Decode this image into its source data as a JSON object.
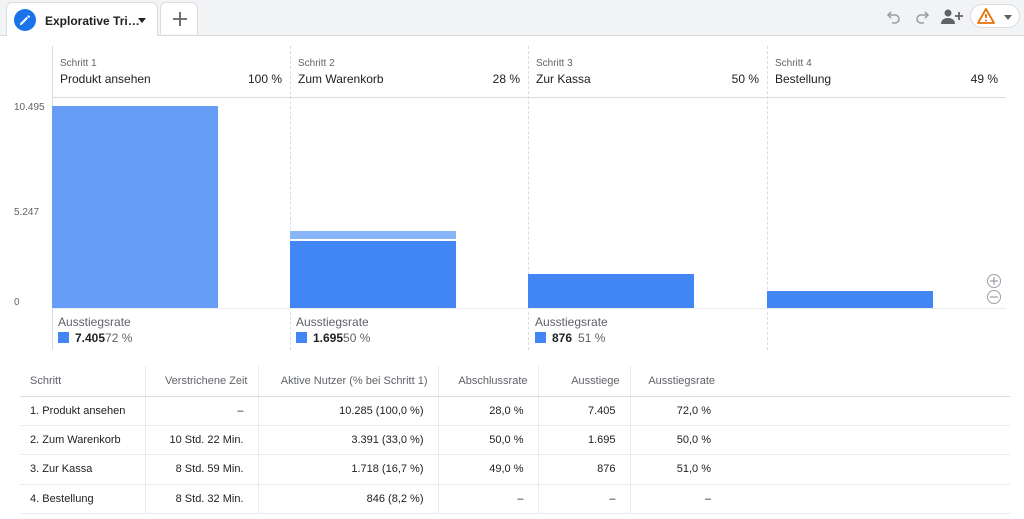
{
  "tab": {
    "title": "Explorative Tri…",
    "icon": "pencil-icon"
  },
  "toolbar": {
    "icons": [
      "undo-icon",
      "redo-icon",
      "share-user-icon",
      "warning-icon"
    ]
  },
  "colors": {
    "primary": "#4285f4",
    "first_bar": "#669df6",
    "dropoff": "#8ab4f8",
    "warning": "#e8710a"
  },
  "chart_data": {
    "type": "bar",
    "categories": [
      "Produkt ansehen",
      "Zum Warenkorb",
      "Zur Kassa",
      "Bestellung"
    ],
    "values": [
      10285,
      3391,
      1718,
      846
    ],
    "dropoff_values": [
      7405,
      1695,
      876,
      null
    ],
    "yticks": [
      "10.495",
      "5.247",
      "0"
    ],
    "ylim": [
      0,
      10495
    ]
  },
  "steps": [
    {
      "label": "Schritt 1",
      "name": "Produkt ansehen",
      "pct": "100 %",
      "exit_label": "Ausstiegsrate",
      "exit_value": "7.405",
      "exit_pct": "72 %"
    },
    {
      "label": "Schritt 2",
      "name": "Zum Warenkorb",
      "pct": "28 %",
      "exit_label": "Ausstiegsrate",
      "exit_value": "1.695",
      "exit_pct": "50 %"
    },
    {
      "label": "Schritt 3",
      "name": "Zur Kassa",
      "pct": "50 %",
      "exit_label": "Ausstiegsrate",
      "exit_value": "876",
      "exit_pct": "51 %"
    },
    {
      "label": "Schritt 4",
      "name": "Bestellung",
      "pct": "49 %"
    }
  ],
  "table": {
    "headers": [
      "Schritt",
      "Verstrichene Zeit",
      "Aktive Nutzer (% bei Schritt 1)",
      "Abschlussrate",
      "Ausstiege",
      "Ausstiegsrate"
    ],
    "rows": [
      [
        "1. Produkt ansehen",
        "–",
        "10.285 (100,0 %)",
        "28,0 %",
        "7.405",
        "72,0 %"
      ],
      [
        "2. Zum Warenkorb",
        "10 Std. 22 Min.",
        "3.391 (33,0 %)",
        "50,0 %",
        "1.695",
        "50,0 %"
      ],
      [
        "3. Zur Kassa",
        "8 Std. 59 Min.",
        "1.718 (16,7 %)",
        "49,0 %",
        "876",
        "51,0 %"
      ],
      [
        "4. Bestellung",
        "8 Std. 32 Min.",
        "846 (8,2 %)",
        "–",
        "–",
        "–"
      ]
    ]
  }
}
